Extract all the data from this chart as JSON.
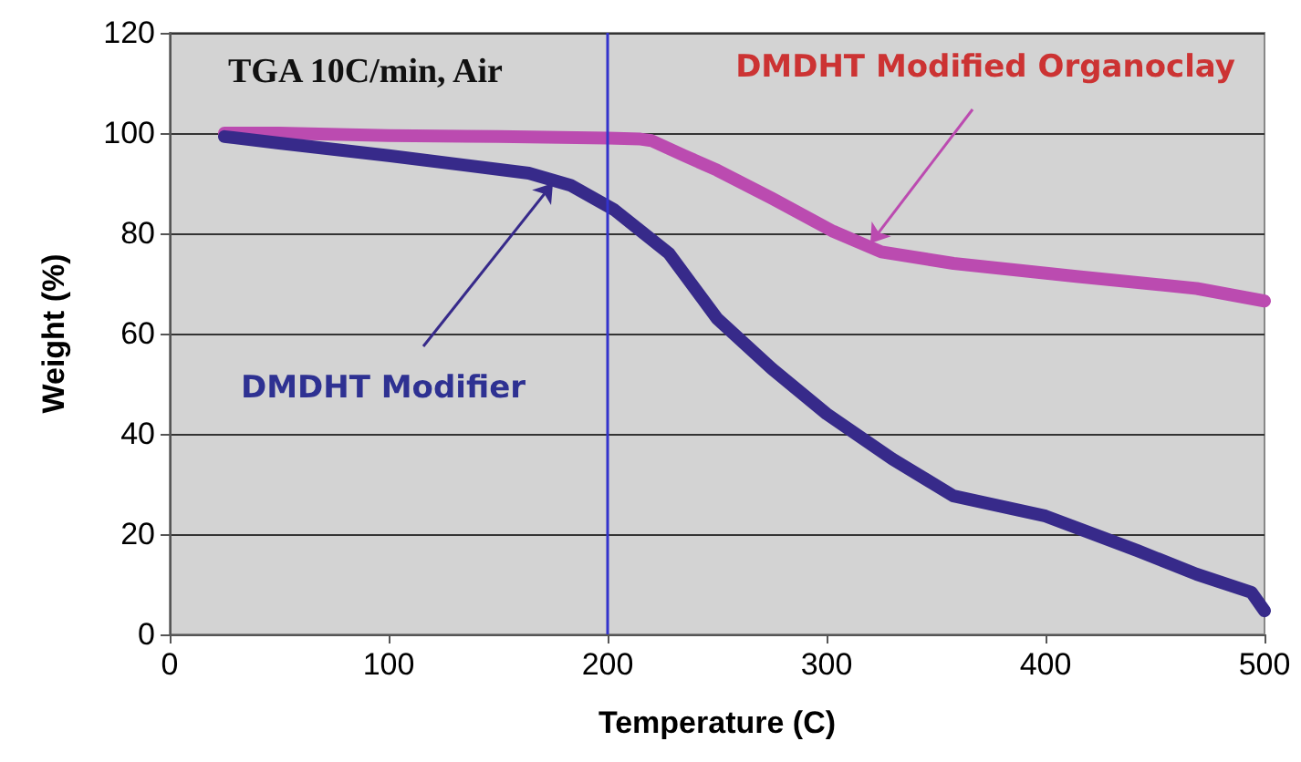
{
  "chart_data": {
    "type": "line",
    "xlabel": "Temperature (C)",
    "ylabel": "Weight (%)",
    "xlim": [
      0,
      500
    ],
    "xticks": [
      0,
      100,
      200,
      300,
      400,
      500
    ],
    "ylim": [
      0,
      120
    ],
    "yticks": [
      0,
      20,
      40,
      60,
      80,
      100,
      120
    ],
    "grid": "y",
    "marker": "none",
    "line_style": "solid",
    "series": [
      {
        "color": "#bb4bb0",
        "x": [
          25,
          50,
          100,
          150,
          200,
          215,
          220,
          235,
          250,
          275,
          303,
          325,
          358,
          414,
          469,
          500
        ],
        "values": [
          100,
          100,
          99.5,
          99.3,
          99,
          98.8,
          98.5,
          95.5,
          92.6,
          87,
          80.4,
          76.3,
          74,
          71.4,
          69,
          66.5
        ]
      },
      {
        "color": "#372a8a",
        "x": [
          25,
          50,
          100,
          164,
          183,
          203,
          228,
          250,
          275,
          300,
          330,
          358,
          400,
          442,
          469,
          494,
          500
        ],
        "values": [
          99.3,
          98,
          95.5,
          92,
          89.6,
          84.7,
          76,
          63,
          53,
          44,
          35,
          27.6,
          23.6,
          16.7,
          12,
          8.4,
          4.7
        ]
      }
    ],
    "ref_lines": [
      {
        "axis": "x",
        "value": 200,
        "color": "#3333cc"
      }
    ],
    "annotations": [
      "TGA 10C/min, Air",
      {
        "text": "DMDHT Modifier",
        "x": 175,
        "y": 90
      },
      {
        "text": "DMDHT Modified Organoclay",
        "x": 320,
        "y": 78
      }
    ]
  }
}
